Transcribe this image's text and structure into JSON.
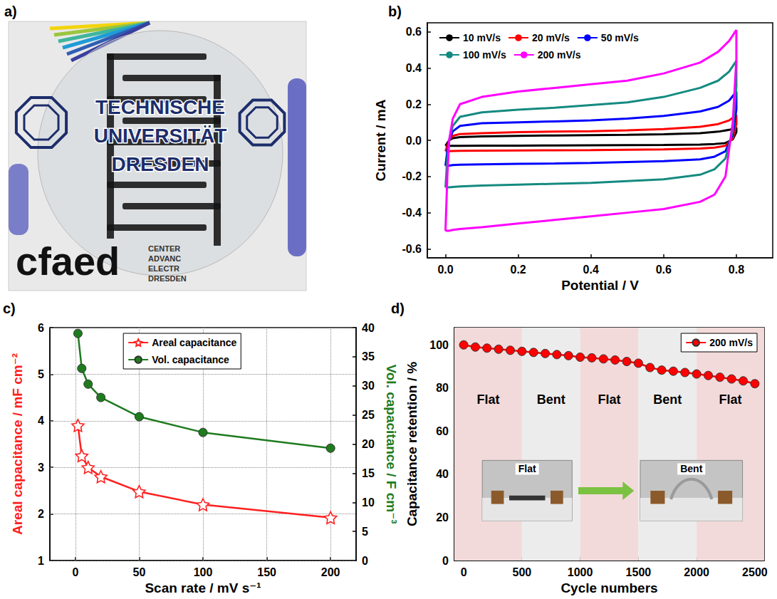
{
  "chart_data": [
    {
      "type": "photo",
      "panel": "a)",
      "texts": {
        "university": [
          "TECHNISCHE",
          "UNIVERSITÄT",
          "DRESDEN"
        ],
        "logo": "cfaed",
        "logo_caption": [
          "CENTER",
          "ADVANC",
          "ELECTR",
          "DRESDEN"
        ]
      }
    },
    {
      "type": "line",
      "panel": "b)",
      "x_label": "Potential / V",
      "y_label": "Current / mA",
      "xlim": [
        -0.05,
        0.9
      ],
      "xticks": [
        {
          "value": 0,
          "label": "0.0"
        },
        0.2,
        0.4,
        0.6,
        0.8
      ],
      "ylim": [
        -0.65,
        0.65
      ],
      "yticks": [
        -0.6,
        -0.4,
        -0.2,
        {
          "value": 0,
          "label": "0.0"
        },
        0.2,
        0.4,
        0.6
      ],
      "grid": false,
      "legend": "top-left",
      "series": [
        {
          "name": "10 mV/s",
          "color": "#000000",
          "x": [
            0,
            0.005,
            0.01,
            0.02,
            0.04,
            0.1,
            0.2,
            0.3,
            0.4,
            0.5,
            0.6,
            0.7,
            0.75,
            0.78,
            0.8,
            0.8,
            0.79,
            0.77,
            0.74,
            0.7,
            0.6,
            0.5,
            0.4,
            0.3,
            0.2,
            0.1,
            0.04,
            0.02,
            0.01,
            0
          ],
          "values": [
            -0.03,
            -0.015,
            0.0,
            0.012,
            0.018,
            0.022,
            0.025,
            0.027,
            0.029,
            0.031,
            0.034,
            0.04,
            0.048,
            0.058,
            0.07,
            0.045,
            0.005,
            -0.015,
            -0.02,
            -0.023,
            -0.025,
            -0.026,
            -0.027,
            -0.028,
            -0.029,
            -0.029,
            -0.03,
            -0.03,
            -0.03,
            -0.03
          ]
        },
        {
          "name": "20 mV/s",
          "color": "#ff0000",
          "x": [
            0,
            0.005,
            0.01,
            0.02,
            0.04,
            0.1,
            0.2,
            0.3,
            0.4,
            0.5,
            0.6,
            0.7,
            0.75,
            0.78,
            0.8,
            0.8,
            0.79,
            0.77,
            0.74,
            0.7,
            0.6,
            0.5,
            0.4,
            0.3,
            0.2,
            0.1,
            0.04,
            0.02,
            0.01,
            0
          ],
          "values": [
            -0.06,
            -0.03,
            0.0,
            0.025,
            0.035,
            0.04,
            0.045,
            0.048,
            0.05,
            0.055,
            0.062,
            0.075,
            0.09,
            0.11,
            0.14,
            0.09,
            0.01,
            -0.03,
            -0.04,
            -0.045,
            -0.05,
            -0.052,
            -0.054,
            -0.055,
            -0.056,
            -0.057,
            -0.058,
            -0.059,
            -0.06,
            -0.06
          ]
        },
        {
          "name": "50 mV/s",
          "color": "#0000ff",
          "x": [
            0,
            0.005,
            0.01,
            0.02,
            0.04,
            0.1,
            0.2,
            0.3,
            0.4,
            0.5,
            0.6,
            0.7,
            0.75,
            0.78,
            0.8,
            0.8,
            0.79,
            0.77,
            0.74,
            0.7,
            0.6,
            0.5,
            0.4,
            0.3,
            0.2,
            0.1,
            0.04,
            0.02,
            0.01,
            0
          ],
          "values": [
            -0.14,
            -0.06,
            0.0,
            0.05,
            0.08,
            0.095,
            0.1,
            0.105,
            0.11,
            0.12,
            0.135,
            0.16,
            0.185,
            0.22,
            0.27,
            0.17,
            0.03,
            -0.06,
            -0.09,
            -0.105,
            -0.115,
            -0.12,
            -0.125,
            -0.128,
            -0.13,
            -0.133,
            -0.135,
            -0.137,
            -0.14,
            -0.14
          ]
        },
        {
          "name": "100 mV/s",
          "color": "#148a80",
          "x": [
            0,
            0.005,
            0.01,
            0.02,
            0.04,
            0.1,
            0.2,
            0.3,
            0.4,
            0.5,
            0.6,
            0.7,
            0.75,
            0.78,
            0.8,
            0.8,
            0.79,
            0.77,
            0.74,
            0.7,
            0.6,
            0.5,
            0.4,
            0.3,
            0.2,
            0.1,
            0.04,
            0.02,
            0.01,
            0
          ],
          "values": [
            -0.26,
            -0.1,
            0.0,
            0.08,
            0.13,
            0.155,
            0.17,
            0.18,
            0.195,
            0.21,
            0.24,
            0.29,
            0.33,
            0.38,
            0.44,
            0.3,
            0.05,
            -0.1,
            -0.16,
            -0.19,
            -0.215,
            -0.225,
            -0.235,
            -0.24,
            -0.245,
            -0.25,
            -0.255,
            -0.258,
            -0.26,
            -0.26
          ]
        },
        {
          "name": "200 mV/s",
          "color": "#ff00ff",
          "x": [
            0,
            0.005,
            0.01,
            0.02,
            0.04,
            0.1,
            0.2,
            0.3,
            0.4,
            0.5,
            0.6,
            0.7,
            0.75,
            0.78,
            0.8,
            0.8,
            0.79,
            0.77,
            0.74,
            0.7,
            0.6,
            0.5,
            0.4,
            0.3,
            0.2,
            0.1,
            0.04,
            0.02,
            0.01,
            0
          ],
          "values": [
            -0.5,
            -0.2,
            0.0,
            0.12,
            0.2,
            0.24,
            0.27,
            0.29,
            0.31,
            0.33,
            0.37,
            0.43,
            0.49,
            0.55,
            0.61,
            0.45,
            0.1,
            -0.2,
            -0.3,
            -0.34,
            -0.38,
            -0.4,
            -0.42,
            -0.44,
            -0.46,
            -0.48,
            -0.49,
            -0.495,
            -0.5,
            -0.5
          ]
        }
      ]
    },
    {
      "type": "line",
      "panel": "c)",
      "x_label": "Scan rate / mV s⁻¹",
      "y_label": "Areal capacitance / mF cm⁻²",
      "y2_label": "Vol. capacitance / F cm⁻³",
      "xlim": [
        -20,
        220
      ],
      "xticks": [
        0,
        50,
        100,
        150,
        200
      ],
      "ylim": [
        1,
        6
      ],
      "yticks": [
        1,
        2,
        3,
        4,
        5,
        6
      ],
      "y2lim": [
        0,
        40
      ],
      "y2ticks": [
        0,
        5,
        10,
        15,
        20,
        25,
        30,
        35,
        40
      ],
      "grid": true,
      "legend": "top-center",
      "x": [
        2,
        5,
        10,
        20,
        50,
        100,
        200
      ],
      "series": [
        {
          "name": "Areal capacitance",
          "color": "#ff2020",
          "marker": "star",
          "values": [
            3.9,
            3.25,
            3.0,
            2.8,
            2.48,
            2.2,
            1.92
          ]
        },
        {
          "name": "Vol. capacitance",
          "color": "#1e7b1e",
          "marker": "circle",
          "axis": "y2",
          "values": [
            39.0,
            33.0,
            30.3,
            28.0,
            24.7,
            22.0,
            19.3
          ]
        }
      ]
    },
    {
      "type": "line",
      "panel": "d)",
      "x_label": "Cycle numbers",
      "y_label": "Capacitance retention / %",
      "xlim": [
        -80,
        2580
      ],
      "xticks": [
        0,
        500,
        1000,
        1500,
        2000,
        2500
      ],
      "ylim": [
        0,
        108
      ],
      "yticks": [
        0,
        20,
        40,
        60,
        80,
        100
      ],
      "grid": false,
      "legend": "top-right",
      "x": [
        0,
        100,
        200,
        300,
        400,
        500,
        600,
        700,
        800,
        900,
        1000,
        1100,
        1200,
        1300,
        1400,
        1500,
        1600,
        1700,
        1800,
        1900,
        2000,
        2100,
        2200,
        2300,
        2400,
        2500
      ],
      "series": [
        {
          "name": "200 mV/s",
          "color": "#ff0000",
          "marker": "circle",
          "values": [
            100,
            99,
            98.5,
            98,
            97.5,
            97,
            96.5,
            96,
            95.5,
            95,
            94.3,
            94,
            93.5,
            93,
            92.3,
            91.5,
            89.5,
            88.3,
            87.8,
            87.2,
            86.5,
            85.8,
            85,
            84.2,
            83.3,
            82
          ]
        }
      ],
      "regions": [
        {
          "label": "Flat",
          "start": -80,
          "end": 500,
          "color": "#f3dada"
        },
        {
          "label": "Bent",
          "start": 500,
          "end": 1000,
          "color": "#ececec"
        },
        {
          "label": "Flat",
          "start": 1000,
          "end": 1500,
          "color": "#f3dada"
        },
        {
          "label": "Bent",
          "start": 1500,
          "end": 2000,
          "color": "#ececec"
        },
        {
          "label": "Flat",
          "start": 2000,
          "end": 2580,
          "color": "#f3dada"
        }
      ],
      "insets": [
        "Flat",
        "Bent"
      ]
    }
  ]
}
